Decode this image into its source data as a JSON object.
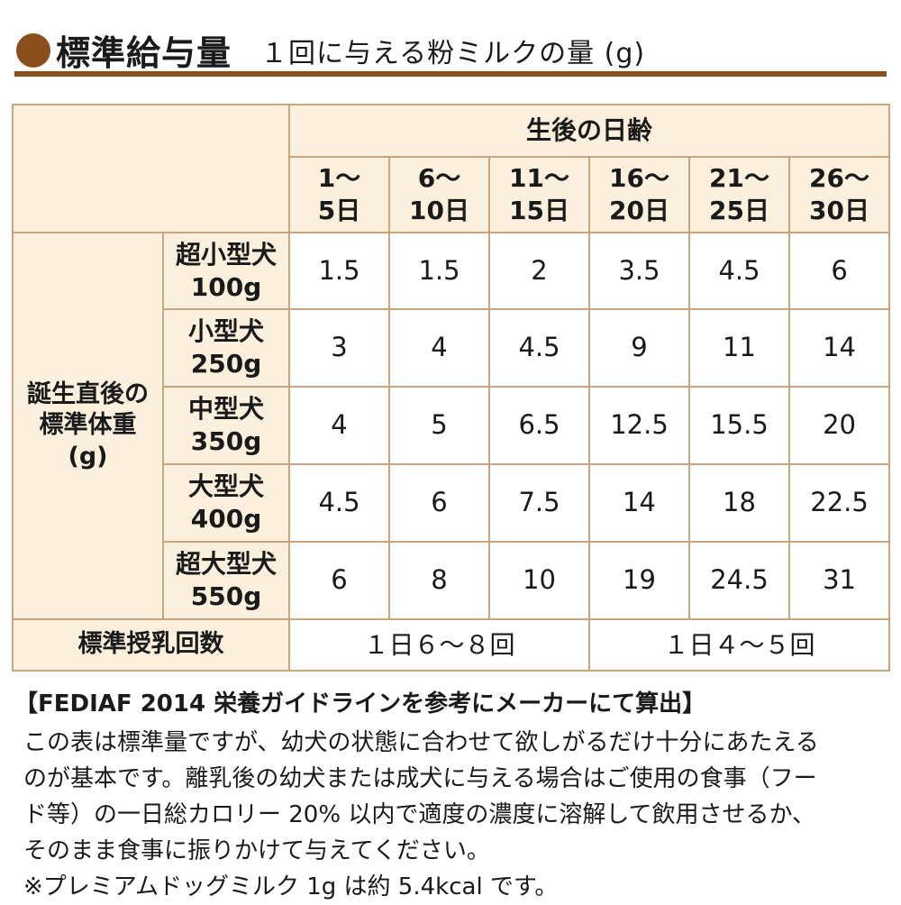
{
  "header": {
    "title": "標準給与量",
    "subtitle": "１回に与える粉ミルクの量 (g)"
  },
  "table": {
    "age_group_label": "生後の日齢",
    "age_columns": [
      {
        "top": "1〜",
        "bottom": "5日"
      },
      {
        "top": "6〜",
        "bottom": "10日"
      },
      {
        "top": "11〜",
        "bottom": "15日"
      },
      {
        "top": "16〜",
        "bottom": "20日"
      },
      {
        "top": "21〜",
        "bottom": "25日"
      },
      {
        "top": "26〜",
        "bottom": "30日"
      }
    ],
    "row_group_label": [
      "誕生直後の",
      "標準体重",
      "(g)"
    ],
    "rows": [
      {
        "breed": "超小型犬",
        "weight": "100g",
        "values": [
          "1.5",
          "1.5",
          "2",
          "3.5",
          "4.5",
          "6"
        ]
      },
      {
        "breed": "小型犬",
        "weight": "250g",
        "values": [
          "3",
          "4",
          "4.5",
          "9",
          "11",
          "14"
        ]
      },
      {
        "breed": "中型犬",
        "weight": "350g",
        "values": [
          "4",
          "5",
          "6.5",
          "12.5",
          "15.5",
          "20"
        ]
      },
      {
        "breed": "大型犬",
        "weight": "400g",
        "values": [
          "4.5",
          "6",
          "7.5",
          "14",
          "18",
          "22.5"
        ]
      },
      {
        "breed": "超大型犬",
        "weight": "550g",
        "values": [
          "6",
          "8",
          "10",
          "19",
          "24.5",
          "31"
        ]
      }
    ],
    "feeding_label": "標準授乳回数",
    "feeding_values": [
      "１日６〜８回",
      "１日４〜５回"
    ]
  },
  "notes": {
    "title": "【FEDIAF 2014 栄養ガイドラインを参考にメーカーにて算出】",
    "lines": [
      "この表は標準量ですが、幼犬の状態に合わせて欲しがるだけ十分にあたえる",
      "のが基本です。離乳後の幼犬または成犬に与える場合はご使用の食事（フー",
      "ド等）の一日総カロリー 20% 以内で適度の濃度に溶解して飲用させるか、",
      "そのまま食事に振りかけて与えてください。",
      "※プレミアムドッグミルク 1g は約 5.4kcal です。"
    ]
  },
  "colors": {
    "accent_brown": "#8b4f1d",
    "header_fill": "#fbf0de",
    "border": "#c9a57e"
  }
}
